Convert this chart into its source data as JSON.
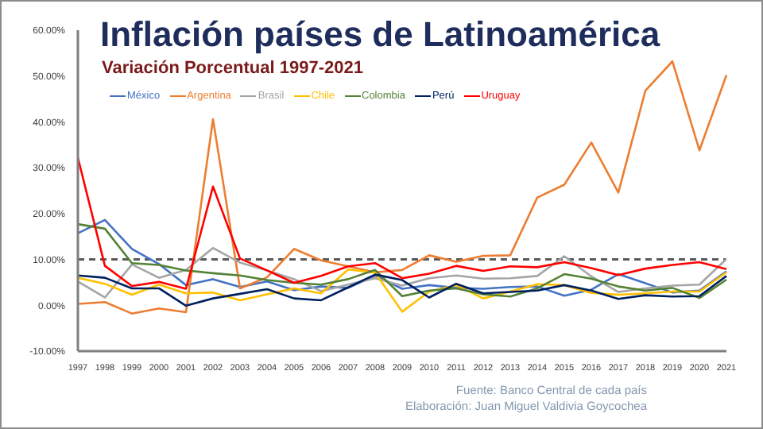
{
  "chart_data": {
    "type": "line",
    "title": "Inflación países de Latinoamérica",
    "subtitle": "Variación Porcentual 1997-2021",
    "categories": [
      "1997",
      "1998",
      "1999",
      "2000",
      "2001",
      "2002",
      "2003",
      "2004",
      "2005",
      "2006",
      "2007",
      "2008",
      "2009",
      "2010",
      "2011",
      "2012",
      "2013",
      "2014",
      "2015",
      "2016",
      "2017",
      "2018",
      "2019",
      "2020",
      "2021"
    ],
    "series": [
      {
        "name": "México",
        "color": "#4472c4",
        "values": [
          15.7,
          18.6,
          12.3,
          9.0,
          4.4,
          5.7,
          4.0,
          5.2,
          3.3,
          4.1,
          3.8,
          6.5,
          3.6,
          4.4,
          3.8,
          3.6,
          4.0,
          4.1,
          2.1,
          3.4,
          6.8,
          4.8,
          2.8,
          3.2,
          7.4
        ]
      },
      {
        "name": "Argentina",
        "color": "#ed7d31",
        "values": [
          0.3,
          0.7,
          -1.8,
          -0.7,
          -1.5,
          40.6,
          3.7,
          6.1,
          12.3,
          9.8,
          8.5,
          7.2,
          7.7,
          10.9,
          9.5,
          10.8,
          10.9,
          23.5,
          26.3,
          35.5,
          24.6,
          46.8,
          53.2,
          33.8,
          50.2
        ]
      },
      {
        "name": "Brasil",
        "color": "#a5a5a5",
        "values": [
          5.2,
          1.7,
          8.9,
          6.0,
          7.7,
          12.5,
          9.3,
          7.6,
          5.7,
          3.1,
          4.5,
          5.9,
          4.3,
          5.9,
          6.5,
          5.8,
          5.9,
          6.4,
          10.7,
          6.3,
          2.9,
          3.7,
          4.3,
          4.5,
          10.1
        ]
      },
      {
        "name": "Chile",
        "color": "#ffc000",
        "values": [
          6.0,
          4.7,
          2.3,
          4.5,
          2.6,
          2.8,
          1.1,
          2.4,
          3.7,
          2.6,
          7.8,
          7.1,
          -1.4,
          3.0,
          4.4,
          1.5,
          3.0,
          4.6,
          4.4,
          2.7,
          2.3,
          2.6,
          3.0,
          3.0,
          7.2
        ]
      },
      {
        "name": "Colombia",
        "color": "#548235",
        "values": [
          17.7,
          16.7,
          9.2,
          8.8,
          7.6,
          7.0,
          6.5,
          5.5,
          4.9,
          4.5,
          5.7,
          7.7,
          2.0,
          3.2,
          3.7,
          2.4,
          1.9,
          3.7,
          6.8,
          5.8,
          4.1,
          3.2,
          3.8,
          1.6,
          5.6
        ]
      },
      {
        "name": "Perú",
        "color": "#002060",
        "values": [
          6.5,
          6.0,
          3.7,
          3.7,
          -0.1,
          1.5,
          2.5,
          3.5,
          1.5,
          1.1,
          3.9,
          6.7,
          5.5,
          1.7,
          4.7,
          2.6,
          2.9,
          3.2,
          4.4,
          3.2,
          1.4,
          2.2,
          1.9,
          2.0,
          6.4
        ]
      },
      {
        "name": "Uruguay",
        "color": "#ff0000",
        "values": [
          32.2,
          8.6,
          4.2,
          5.1,
          3.6,
          25.9,
          10.2,
          7.6,
          4.9,
          6.4,
          8.5,
          9.2,
          5.9,
          6.9,
          8.6,
          7.5,
          8.5,
          8.3,
          9.4,
          8.1,
          6.6,
          8.0,
          8.8,
          9.4,
          7.9
        ]
      }
    ],
    "ylim": [
      -10,
      60
    ],
    "yticks": [
      {
        "value": -10,
        "label": "-10.00%"
      },
      {
        "value": 0,
        "label": "0.00%"
      },
      {
        "value": 10,
        "label": "10.00%"
      },
      {
        "value": 20,
        "label": "20.00%"
      },
      {
        "value": 30,
        "label": "30.00%"
      },
      {
        "value": 40,
        "label": "40.00%"
      },
      {
        "value": 50,
        "label": "50.00%"
      },
      {
        "value": 60,
        "label": "60.00%"
      }
    ],
    "ref_lines": [
      {
        "axis": "y",
        "value": 10,
        "color": "#595959",
        "line_style": "dashed"
      }
    ],
    "grid": false,
    "legend": "top left",
    "marker": "none",
    "line_style": "solid",
    "annotations": [
      "Fuente: Banco Central de cada país",
      "Elaboración: Juan Miguel Valdivia Goycochea"
    ]
  }
}
